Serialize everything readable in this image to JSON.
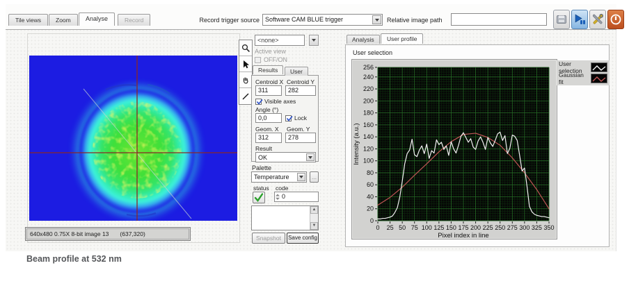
{
  "toolbar": {
    "tabs": [
      {
        "label": "Tile views",
        "state": "normal"
      },
      {
        "label": "Zoom",
        "state": "normal"
      },
      {
        "label": "Analyse",
        "state": "active"
      },
      {
        "label": "Record",
        "state": "disabled"
      }
    ],
    "record_trigger_label": "Record trigger source",
    "record_trigger_value": "Software CAM BLUE trigger",
    "relative_path_label": "Relative image path",
    "relative_path_value": ""
  },
  "viewer": {
    "image_info": "640x480 0.75X 8-bit image 13",
    "cursor_position": "(637,320)"
  },
  "controls": {
    "view_selector_value": "<none>",
    "active_view_label": "Active view",
    "off_on_label": "OFF/ON",
    "tabs": [
      {
        "label": "Results",
        "state": "active"
      },
      {
        "label": "User",
        "state": "normal"
      }
    ],
    "centroid_x_label": "Centroid X",
    "centroid_y_label": "Centroid Y",
    "centroid_x": "311",
    "centroid_y": "282",
    "visible_axes_label": "Visible axes",
    "angle_label": "Angle (°)",
    "angle_value": "0,0",
    "lock_label": "Lock",
    "geom_x_label": "Geom. X",
    "geom_y_label": "Geom. Y",
    "geom_x": "312",
    "geom_y": "278",
    "result_label": "Result",
    "result_value": "OK",
    "palette_label": "Palette",
    "palette_value": "Temperature",
    "palette_more_label": "...",
    "status_label": "status",
    "code_label": "code",
    "code_value": "0",
    "snapshot_label": "Snapshot",
    "save_config_label": "Save config"
  },
  "analysis": {
    "tabs": [
      {
        "label": "Analysis",
        "state": "normal"
      },
      {
        "label": "User profile",
        "state": "active"
      }
    ],
    "group_label": "User selection",
    "legend": [
      {
        "label": "User selection",
        "color": "#f2f2f2"
      },
      {
        "label": "Gaussian fit",
        "color": "#c05555"
      }
    ]
  },
  "chart_data": {
    "type": "line",
    "title": "User selection",
    "xlabel": "Pixel index in line",
    "ylabel": "Intensity (a.u.)",
    "xlim": [
      0,
      350
    ],
    "ylim": [
      0,
      256
    ],
    "x_ticks": [
      0,
      25,
      50,
      75,
      100,
      125,
      150,
      175,
      200,
      225,
      250,
      275,
      300,
      325,
      350
    ],
    "y_ticks": [
      0,
      20,
      40,
      60,
      80,
      100,
      120,
      140,
      160,
      180,
      200,
      220,
      240,
      256
    ],
    "grid": true,
    "background": "#060606",
    "legend_position": "top-right",
    "series": [
      {
        "name": "User selection",
        "color": "#f2f2f2",
        "x": [
          0,
          5,
          10,
          15,
          20,
          25,
          30,
          35,
          40,
          45,
          50,
          55,
          60,
          65,
          70,
          75,
          80,
          85,
          90,
          95,
          100,
          105,
          110,
          115,
          120,
          125,
          130,
          135,
          140,
          145,
          150,
          155,
          160,
          165,
          170,
          175,
          180,
          185,
          190,
          195,
          200,
          205,
          210,
          215,
          220,
          225,
          230,
          235,
          240,
          245,
          250,
          255,
          260,
          265,
          270,
          275,
          280,
          285,
          290,
          295,
          300,
          305,
          310,
          315,
          320,
          325,
          330,
          335,
          340,
          345,
          350
        ],
        "values": [
          3,
          3,
          4,
          4,
          5,
          6,
          8,
          14,
          22,
          40,
          66,
          95,
          112,
          118,
          136,
          110,
          107,
          118,
          125,
          112,
          128,
          104,
          117,
          113,
          135,
          127,
          131,
          119,
          125,
          109,
          132,
          120,
          113,
          126,
          141,
          147,
          139,
          131,
          137,
          123,
          119,
          133,
          140,
          131,
          119,
          139,
          130,
          124,
          134,
          145,
          148,
          134,
          142,
          112,
          121,
          143,
          141,
          134,
          109,
          83,
          88,
          58,
          24,
          15,
          11,
          9,
          8,
          7,
          7,
          6,
          5
        ]
      },
      {
        "name": "Gaussian fit",
        "color": "#c05555",
        "x": [
          0,
          25,
          50,
          75,
          100,
          125,
          150,
          175,
          200,
          225,
          250,
          275,
          300,
          325,
          350
        ],
        "values": [
          26,
          39,
          56,
          76,
          95,
          115,
          132,
          144,
          146,
          139,
          126,
          105,
          80,
          52,
          20
        ]
      }
    ]
  },
  "caption": "Beam profile at 532 nm",
  "colors": {
    "beam_background": "#1c1ce2",
    "beam_core": "#44e23a",
    "beam_ring": "#3af0da",
    "crosshair": "#8b2626"
  }
}
